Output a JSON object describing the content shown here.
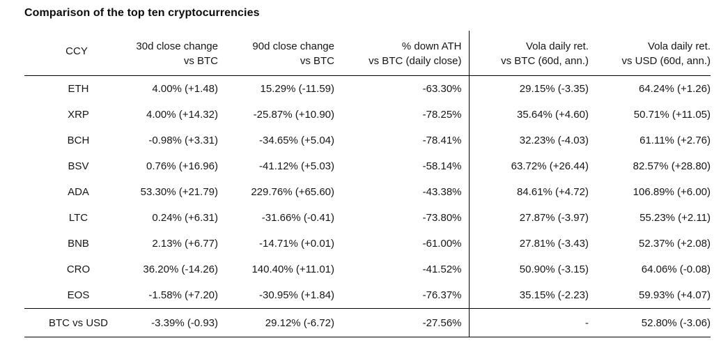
{
  "title": "Comparison of the top ten cryptocurrencies",
  "colors": {
    "background": "#ffffff",
    "text": "#161616",
    "rule_lines": "#000000"
  },
  "chart_data": {
    "type": "table",
    "title": "Comparison of the top ten cryptocurrencies",
    "columns": [
      "CCY",
      "30d close change vs BTC",
      "90d close change vs BTC",
      "% down ATH vs BTC (daily close)",
      "Vola daily ret. vs BTC (60d, ann.)",
      "Vola daily ret. vs USD (60d, ann.)"
    ],
    "header_lines": [
      [
        "CCY",
        ""
      ],
      [
        "30d close change",
        "vs BTC"
      ],
      [
        "90d close change",
        "vs BTC"
      ],
      [
        "% down ATH",
        "vs BTC (daily close)"
      ],
      [
        "Vola daily ret.",
        "vs BTC (60d, ann.)"
      ],
      [
        "Vola daily ret.",
        "vs USD (60d, ann.)"
      ]
    ],
    "rows": [
      [
        "ETH",
        "4.00% (+1.48)",
        "15.29% (-11.59)",
        "-63.30%",
        "29.15% (-3.35)",
        "64.24% (+1.26)"
      ],
      [
        "XRP",
        "4.00% (+14.32)",
        "-25.87% (+10.90)",
        "-78.25%",
        "35.64% (+4.60)",
        "50.71% (+11.05)"
      ],
      [
        "BCH",
        "-0.98% (+3.31)",
        "-34.65% (+5.04)",
        "-78.41%",
        "32.23% (-4.03)",
        "61.11% (+2.76)"
      ],
      [
        "BSV",
        "0.76% (+16.96)",
        "-41.12% (+5.03)",
        "-58.14%",
        "63.72% (+26.44)",
        "82.57% (+28.80)"
      ],
      [
        "ADA",
        "53.30% (+21.79)",
        "229.76% (+65.60)",
        "-43.38%",
        "84.61% (+4.72)",
        "106.89% (+6.00)"
      ],
      [
        "LTC",
        "0.24% (+6.31)",
        "-31.66% (-0.41)",
        "-73.80%",
        "27.87% (-3.97)",
        "55.23% (+2.11)"
      ],
      [
        "BNB",
        "2.13% (+6.77)",
        "-14.71% (+0.01)",
        "-61.00%",
        "27.81% (-3.43)",
        "52.37% (+2.08)"
      ],
      [
        "CRO",
        "36.20% (-14.26)",
        "140.40% (+11.01)",
        "-41.52%",
        "50.90% (-3.15)",
        "64.06% (-0.08)"
      ],
      [
        "EOS",
        "-1.58% (+7.20)",
        "-30.95% (+1.84)",
        "-76.37%",
        "35.15% (-2.23)",
        "59.93% (+4.07)"
      ]
    ],
    "footer_row": [
      "BTC vs USD",
      "-3.39% (-0.93)",
      "29.12% (-6.72)",
      "-27.56%",
      "-",
      "52.80% (-3.06)"
    ]
  }
}
